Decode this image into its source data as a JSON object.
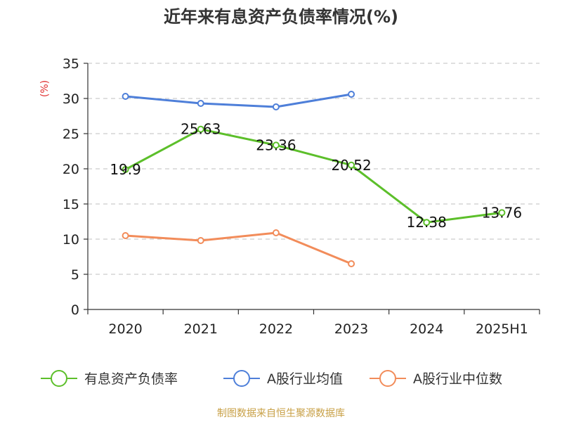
{
  "colors": {
    "source": "#c8a046",
    "ylabel": "#e03030",
    "grid": "#cccccc",
    "axis": "#333333"
  },
  "chart_data": {
    "type": "line",
    "title": "近年来有息资产负债率情况(%)",
    "ylabel": "(%)",
    "ylim": [
      0,
      35
    ],
    "yticks": [
      0,
      5,
      10,
      15,
      20,
      25,
      30,
      35
    ],
    "categories": [
      "2020",
      "2021",
      "2022",
      "2023",
      "2024",
      "2025H1"
    ],
    "grid": "horizontal-dashed",
    "legend_position": "bottom",
    "series": [
      {
        "name": "有息资产负债率",
        "color": "#5cbf2a",
        "values": [
          19.9,
          25.63,
          23.36,
          20.52,
          12.38,
          13.76
        ],
        "labels": [
          "19.9",
          "25.63",
          "23.36",
          "20.52",
          "12.38",
          "13.76"
        ],
        "show_labels": true
      },
      {
        "name": "A股行业均值",
        "color": "#4e7fd9",
        "values": [
          30.3,
          29.3,
          28.8,
          30.6,
          null,
          null
        ],
        "show_labels": false
      },
      {
        "name": "A股行业中位数",
        "color": "#f28c5a",
        "values": [
          10.5,
          9.8,
          10.9,
          6.5,
          null,
          null
        ],
        "show_labels": false
      }
    ]
  },
  "source": "制图数据来自恒生聚源数据库"
}
